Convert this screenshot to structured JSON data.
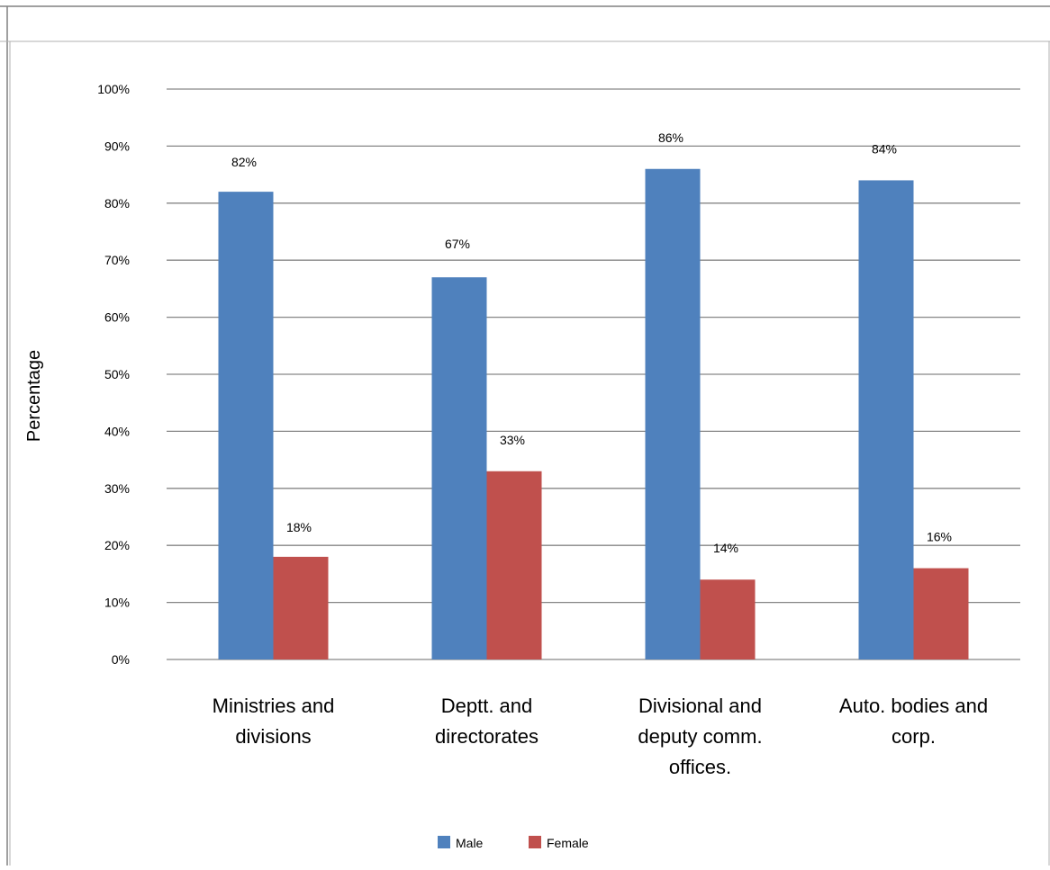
{
  "chart_data": {
    "type": "bar",
    "categories": [
      [
        "Ministries and",
        "divisions"
      ],
      [
        "Deptt. and",
        "directorates"
      ],
      [
        "Divisional and",
        "deputy comm.",
        "offices."
      ],
      [
        "Auto. bodies and",
        "corp."
      ]
    ],
    "series": [
      {
        "name": "Male",
        "color": "#4F81BD",
        "values": [
          82,
          67,
          86,
          84
        ],
        "labels": [
          "82%",
          "67%",
          "86%",
          "84%"
        ]
      },
      {
        "name": "Female",
        "color": "#C0504D",
        "values": [
          18,
          33,
          14,
          16
        ],
        "labels": [
          "18%",
          "33%",
          "14%",
          "16%"
        ]
      }
    ],
    "ylabel": "Percentage",
    "xlabel": "",
    "ylim": [
      0,
      100
    ],
    "yticks": [
      "0%",
      "10%",
      "20%",
      "30%",
      "40%",
      "50%",
      "60%",
      "70%",
      "80%",
      "90%",
      "100%"
    ],
    "grid": true,
    "legend_position": "bottom"
  }
}
